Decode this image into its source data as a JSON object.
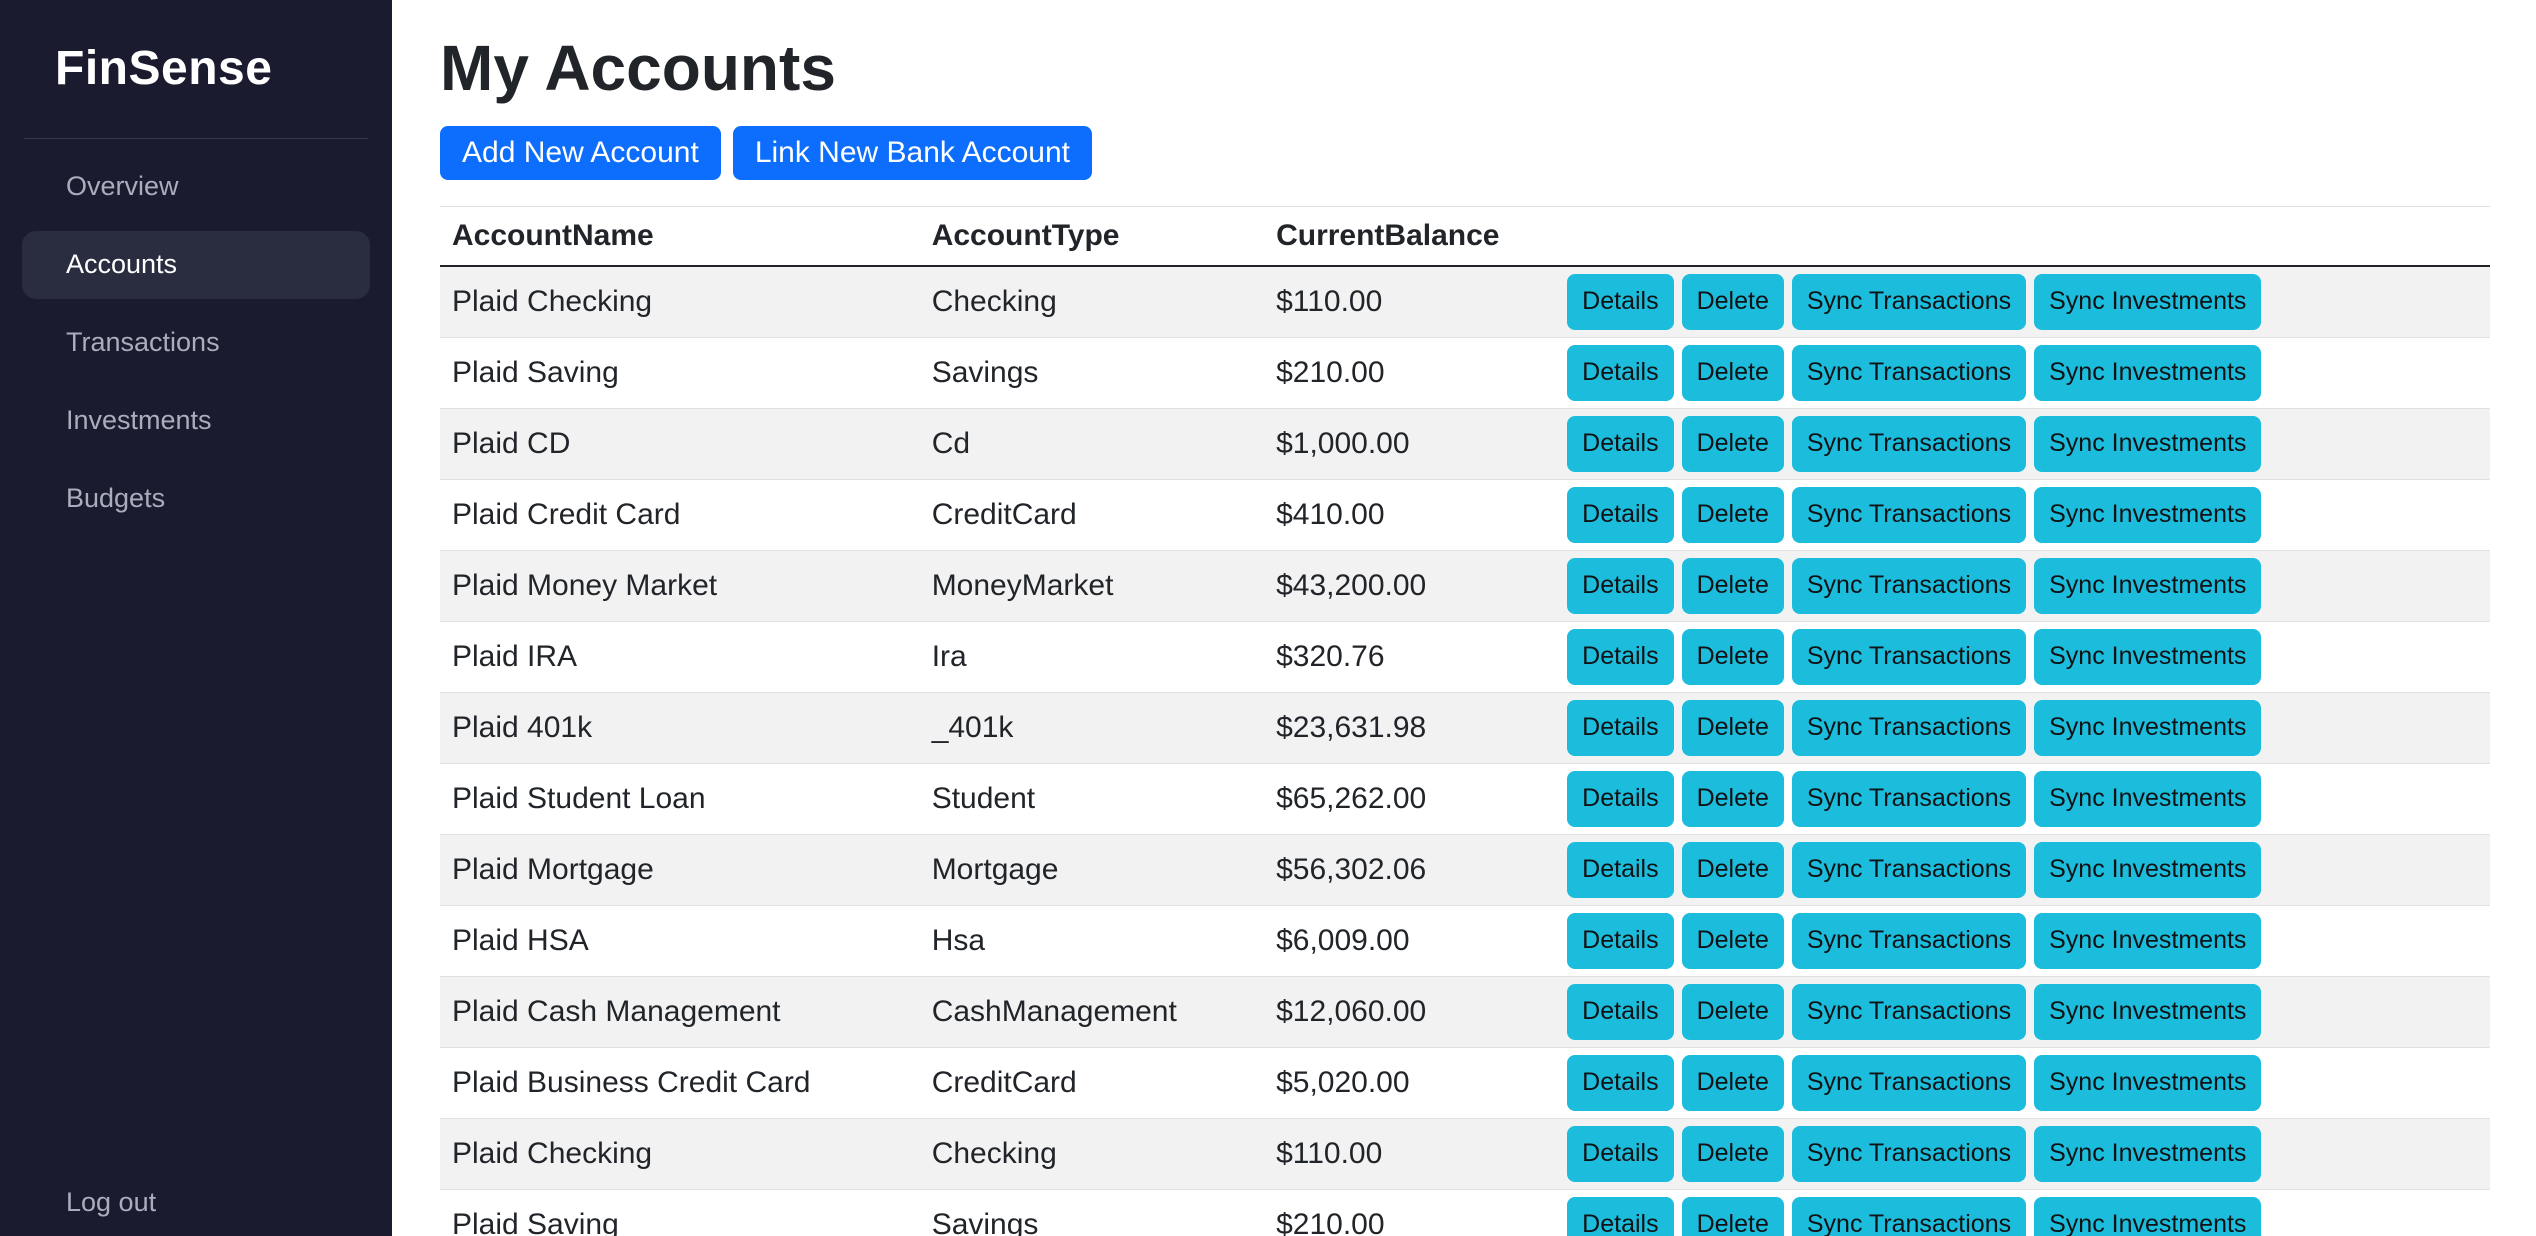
{
  "app": {
    "name": "FinSense"
  },
  "sidebar": {
    "items": [
      {
        "label": "Overview",
        "active": false
      },
      {
        "label": "Accounts",
        "active": true
      },
      {
        "label": "Transactions",
        "active": false
      },
      {
        "label": "Investments",
        "active": false
      },
      {
        "label": "Budgets",
        "active": false
      }
    ],
    "logout_label": "Log out"
  },
  "main": {
    "title": "My Accounts",
    "actions": {
      "add_new_account": "Add New Account",
      "link_new_bank_account": "Link New Bank Account"
    },
    "table": {
      "columns": [
        "AccountName",
        "AccountType",
        "CurrentBalance"
      ],
      "row_actions": [
        "Details",
        "Delete",
        "Sync Transactions",
        "Sync Investments"
      ],
      "rows": [
        {
          "name": "Plaid Checking",
          "type": "Checking",
          "balance": "$110.00"
        },
        {
          "name": "Plaid Saving",
          "type": "Savings",
          "balance": "$210.00"
        },
        {
          "name": "Plaid CD",
          "type": "Cd",
          "balance": "$1,000.00"
        },
        {
          "name": "Plaid Credit Card",
          "type": "CreditCard",
          "balance": "$410.00"
        },
        {
          "name": "Plaid Money Market",
          "type": "MoneyMarket",
          "balance": "$43,200.00"
        },
        {
          "name": "Plaid IRA",
          "type": "Ira",
          "balance": "$320.76"
        },
        {
          "name": "Plaid 401k",
          "type": "_401k",
          "balance": "$23,631.98"
        },
        {
          "name": "Plaid Student Loan",
          "type": "Student",
          "balance": "$65,262.00"
        },
        {
          "name": "Plaid Mortgage",
          "type": "Mortgage",
          "balance": "$56,302.06"
        },
        {
          "name": "Plaid HSA",
          "type": "Hsa",
          "balance": "$6,009.00"
        },
        {
          "name": "Plaid Cash Management",
          "type": "CashManagement",
          "balance": "$12,060.00"
        },
        {
          "name": "Plaid Business Credit Card",
          "type": "CreditCard",
          "balance": "$5,020.00"
        },
        {
          "name": "Plaid Checking",
          "type": "Checking",
          "balance": "$110.00"
        },
        {
          "name": "Plaid Saving",
          "type": "Savings",
          "balance": "$210.00"
        }
      ]
    }
  },
  "colors": {
    "primary_button": "#0d6efd",
    "info_button": "#1cbcdd",
    "sidebar_bg": "#1a1b2e",
    "sidebar_active_bg": "#2a2c40",
    "table_stripe": "#f2f2f2"
  }
}
